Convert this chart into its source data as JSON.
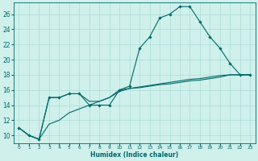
{
  "xlabel": "Humidex (Indice chaleur)",
  "bg_color": "#cff0eb",
  "grid_color": "#aaddd6",
  "line_color": "#006868",
  "x_ticks": [
    0,
    1,
    2,
    3,
    4,
    5,
    6,
    7,
    8,
    9,
    10,
    11,
    12,
    13,
    14,
    15,
    16,
    17,
    18,
    19,
    20,
    21,
    22,
    23
  ],
  "xlim": [
    -0.5,
    23.5
  ],
  "ylim": [
    9,
    27.5
  ],
  "y_ticks": [
    10,
    12,
    14,
    16,
    18,
    20,
    22,
    24,
    26
  ],
  "series1_x": [
    0,
    1,
    2,
    3,
    4,
    5,
    6,
    7,
    8,
    9,
    10,
    11,
    12,
    13,
    14,
    15,
    16,
    17,
    18,
    19,
    20,
    21,
    22,
    23
  ],
  "series1_y": [
    11,
    10,
    9.5,
    15,
    15,
    15.5,
    15.5,
    14,
    14,
    14,
    16,
    16.5,
    21.5,
    23,
    25.5,
    26,
    27,
    27,
    25,
    23,
    21.5,
    19.5,
    18,
    18
  ],
  "series2_x": [
    0,
    1,
    2,
    3,
    4,
    5,
    6,
    7,
    8,
    9,
    10,
    11,
    12,
    13,
    14,
    15,
    16,
    17,
    18,
    19,
    20,
    21,
    22,
    23
  ],
  "series2_y": [
    11,
    10,
    9.5,
    15,
    15,
    15.5,
    15.5,
    14.5,
    14.5,
    15,
    16,
    16.2,
    16.3,
    16.5,
    16.7,
    16.8,
    17,
    17.2,
    17.3,
    17.5,
    17.7,
    18,
    18,
    18
  ],
  "series3_x": [
    0,
    1,
    2,
    3,
    4,
    5,
    6,
    7,
    8,
    9,
    10,
    11,
    12,
    13,
    14,
    15,
    16,
    17,
    18,
    19,
    20,
    21,
    22,
    23
  ],
  "series3_y": [
    11,
    10,
    9.5,
    11.5,
    12,
    13,
    13.5,
    14,
    14.5,
    15,
    15.8,
    16.2,
    16.4,
    16.6,
    16.8,
    17,
    17.2,
    17.4,
    17.5,
    17.7,
    17.9,
    18,
    18,
    18
  ]
}
